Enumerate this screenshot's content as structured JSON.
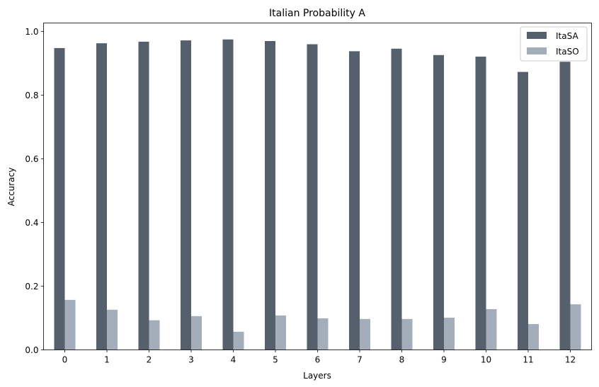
{
  "chart_data": {
    "type": "bar",
    "title": "Italian Probability A",
    "xlabel": "Layers",
    "ylabel": "Accuracy",
    "categories": [
      "0",
      "1",
      "2",
      "3",
      "4",
      "5",
      "6",
      "7",
      "8",
      "9",
      "10",
      "11",
      "12"
    ],
    "series": [
      {
        "name": "ItaSA",
        "color": "#565f6c",
        "values": [
          0.948,
          0.963,
          0.968,
          0.972,
          0.975,
          0.97,
          0.96,
          0.938,
          0.946,
          0.926,
          0.921,
          0.873,
          0.905
        ]
      },
      {
        "name": "ItaSO",
        "color": "#a4aebb",
        "values": [
          0.157,
          0.126,
          0.093,
          0.106,
          0.057,
          0.108,
          0.099,
          0.097,
          0.097,
          0.101,
          0.128,
          0.081,
          0.143
        ]
      }
    ],
    "ylim": [
      0,
      1.0267
    ],
    "yticks": [
      "0.0",
      "0.2",
      "0.4",
      "0.6",
      "0.8",
      "1.0"
    ],
    "legend_position": "top-right",
    "grid": false
  }
}
